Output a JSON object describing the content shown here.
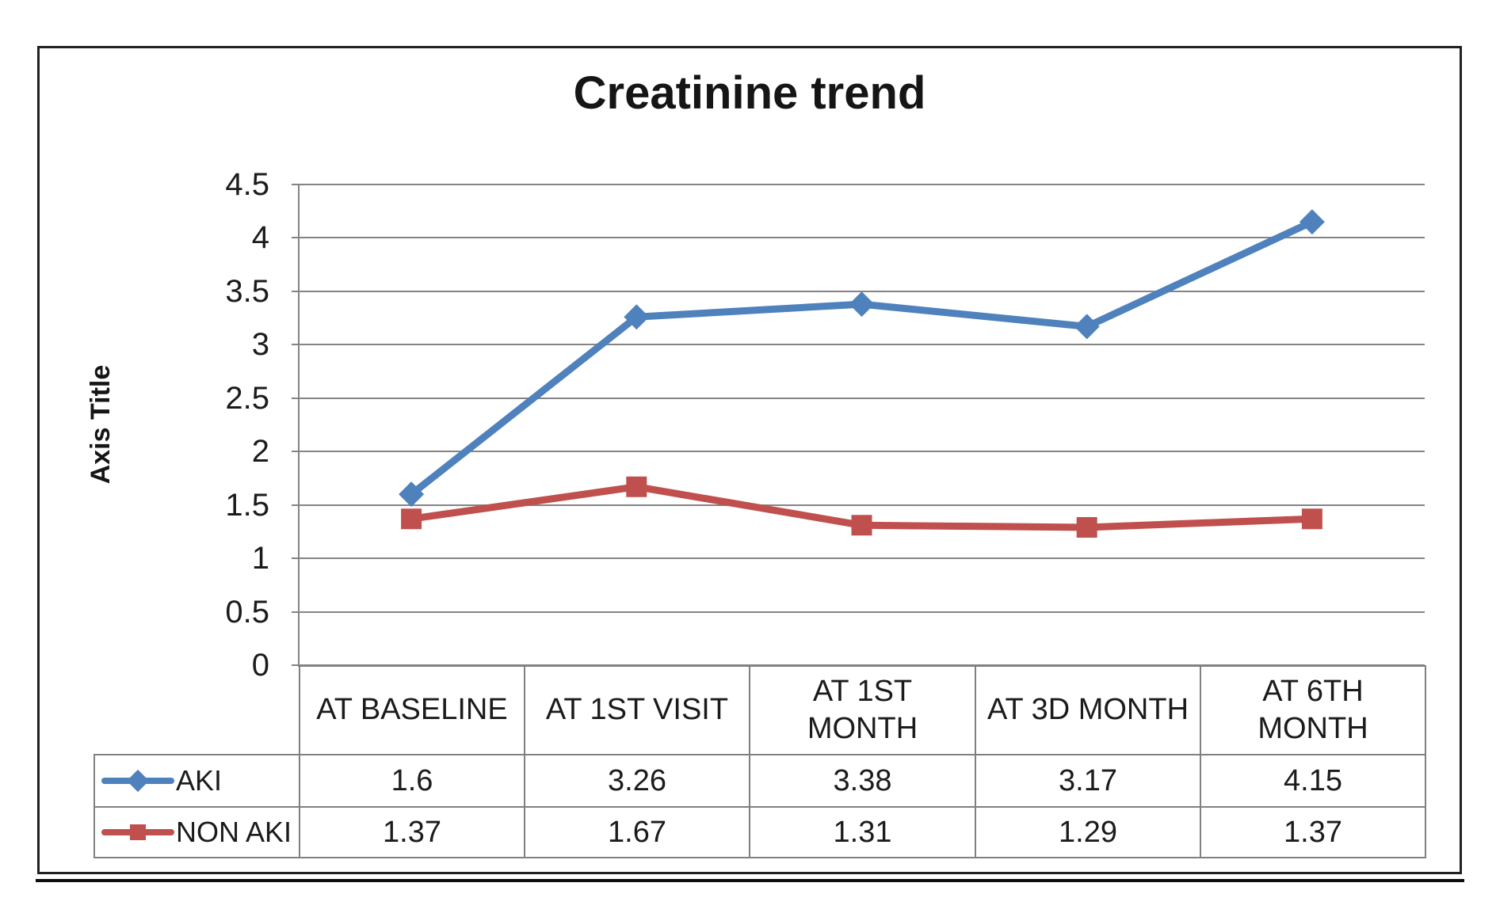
{
  "chart_data": {
    "type": "line",
    "title": "Creatinine trend",
    "xlabel": "",
    "ylabel": "Axis Title",
    "categories": [
      "AT BASELINE",
      "AT 1ST VISIT",
      "AT 1ST\nMONTH",
      "AT 3D MONTH",
      "AT 6TH\nMONTH"
    ],
    "series": [
      {
        "name": "AKI",
        "values": [
          1.6,
          3.26,
          3.38,
          3.17,
          4.15
        ],
        "color": "#4F81BD",
        "marker": "diamond"
      },
      {
        "name": "NON AKI",
        "values": [
          1.37,
          1.67,
          1.31,
          1.29,
          1.37
        ],
        "color": "#C0504D",
        "marker": "square"
      }
    ],
    "ylim": [
      0,
      4.5
    ],
    "ytick_step": 0.5,
    "ytick_labels": [
      "0",
      "0.5",
      "1",
      "1.5",
      "2",
      "2.5",
      "3",
      "3.5",
      "4",
      "4.5"
    ],
    "grid": true,
    "legend_position": "table-left",
    "data_table_shown": true,
    "colors": {
      "grid": "#848484",
      "table_border": "#808080",
      "frame_border": "#212121",
      "text": "#1b1b1b",
      "background": "#ffffff"
    }
  }
}
